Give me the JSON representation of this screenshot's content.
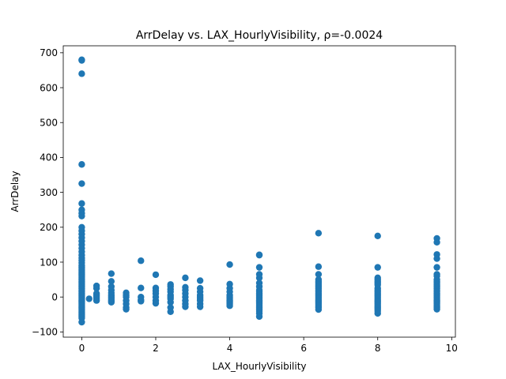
{
  "chart_data": {
    "type": "scatter",
    "title": "ArrDelay vs. LAX_HourlyVisibility, ρ=-0.0024",
    "xlabel": "LAX_HourlyVisibility",
    "ylabel": "ArrDelay",
    "xlim": [
      -0.5,
      10.1
    ],
    "ylim": [
      -115,
      720
    ],
    "xticks": [
      0,
      2,
      4,
      6,
      8,
      10
    ],
    "yticks": [
      -100,
      0,
      100,
      200,
      300,
      400,
      500,
      600,
      700
    ],
    "grid": false,
    "legend": "none",
    "marker_color": "#1f77b4",
    "columns": [
      {
        "x": 0,
        "y": [
          680,
          678,
          640,
          380,
          325,
          268,
          250,
          240,
          232,
          200,
          190,
          180,
          170,
          160,
          150,
          140,
          130,
          120,
          112,
          105,
          98,
          90,
          85,
          80,
          75,
          70,
          65,
          60,
          55,
          50,
          45,
          40,
          35,
          30,
          25,
          20,
          15,
          10,
          5,
          0,
          -5,
          -10,
          -15,
          -20,
          -25,
          -30,
          -35,
          -40,
          -45,
          -50,
          -55,
          -60,
          -72
        ]
      },
      {
        "x": 0.2,
        "y": [
          -5
        ]
      },
      {
        "x": 0.4,
        "y": [
          32,
          25,
          10,
          5,
          0,
          -5,
          -10
        ]
      },
      {
        "x": 0.8,
        "y": [
          67,
          45,
          30,
          20,
          12,
          5,
          0,
          -5,
          -10,
          -15
        ]
      },
      {
        "x": 1.2,
        "y": [
          12,
          5,
          0,
          -10,
          -20,
          -30,
          -35
        ]
      },
      {
        "x": 1.6,
        "y": [
          104,
          26,
          0,
          -8,
          -12
        ]
      },
      {
        "x": 2.0,
        "y": [
          64,
          26,
          18,
          10,
          0,
          -10,
          -18
        ]
      },
      {
        "x": 2.4,
        "y": [
          36,
          30,
          22,
          15,
          5,
          0,
          -5,
          -15,
          -30,
          -42
        ]
      },
      {
        "x": 2.8,
        "y": [
          55,
          28,
          20,
          10,
          0,
          -10,
          -20,
          -28
        ]
      },
      {
        "x": 3.2,
        "y": [
          47,
          25,
          15,
          5,
          0,
          -5,
          -10,
          -20,
          -28
        ]
      },
      {
        "x": 4.0,
        "y": [
          93,
          37,
          25,
          15,
          5,
          0,
          -5,
          -10,
          -15,
          -20,
          -25
        ]
      },
      {
        "x": 4.8,
        "y": [
          121,
          120,
          85,
          65,
          55,
          40,
          30,
          20,
          15,
          10,
          5,
          0,
          -5,
          -10,
          -15,
          -20,
          -25,
          -30,
          -35,
          -40,
          -47,
          -56
        ]
      },
      {
        "x": 6.4,
        "y": [
          183,
          87,
          65,
          50,
          45,
          40,
          35,
          30,
          25,
          20,
          15,
          10,
          5,
          0,
          -5,
          -10,
          -15,
          -20,
          -25,
          -30,
          -36
        ]
      },
      {
        "x": 8.0,
        "y": [
          175,
          85,
          55,
          50,
          45,
          40,
          35,
          25,
          20,
          15,
          10,
          5,
          0,
          -5,
          -10,
          -15,
          -20,
          -25,
          -30,
          -35,
          -40,
          -47
        ]
      },
      {
        "x": 9.6,
        "y": [
          168,
          157,
          122,
          110,
          85,
          65,
          60,
          50,
          45,
          40,
          35,
          30,
          25,
          20,
          15,
          10,
          5,
          0,
          -5,
          -10,
          -15,
          -20,
          -25,
          -30,
          -35
        ]
      }
    ]
  }
}
